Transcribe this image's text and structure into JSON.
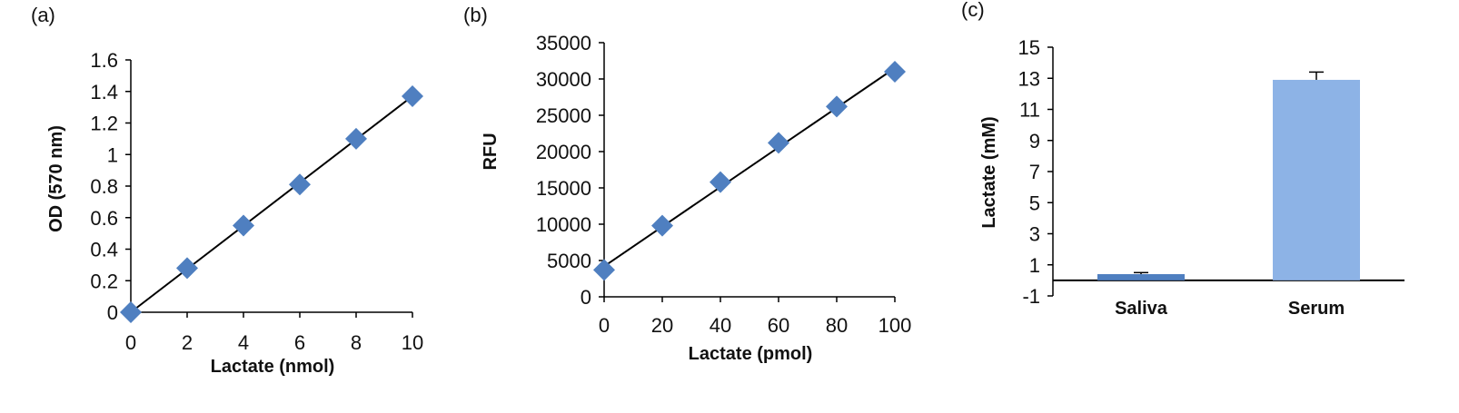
{
  "chart_data": [
    {
      "panel_label": "(a)",
      "type": "scatter",
      "xlabel": "Lactate (nmol)",
      "ylabel": "OD (570 nm)",
      "xlim": [
        0,
        10
      ],
      "ylim": [
        0,
        1.6
      ],
      "xticks": [
        "0",
        "2",
        "4",
        "6",
        "8",
        "10"
      ],
      "yticks": [
        "0",
        "0.2",
        "0.4",
        "0.6",
        "0.8",
        "1",
        "1.2",
        "1.4",
        "1.6"
      ],
      "x": [
        0,
        2,
        4,
        6,
        8,
        10
      ],
      "y": [
        0.0,
        0.28,
        0.55,
        0.81,
        1.1,
        1.37
      ],
      "trendline": {
        "type": "linear",
        "x": [
          0,
          10
        ],
        "y": [
          0.0,
          1.37
        ]
      },
      "marker": "diamond",
      "marker_color": "#4f7fc0",
      "grid": false
    },
    {
      "panel_label": "(b)",
      "type": "scatter",
      "xlabel": "Lactate (pmol)",
      "ylabel": "RFU",
      "xlim": [
        0,
        100
      ],
      "ylim": [
        0,
        35000
      ],
      "xticks": [
        "0",
        "20",
        "40",
        "60",
        "80",
        "100"
      ],
      "yticks": [
        "0",
        "5000",
        "10000",
        "15000",
        "20000",
        "25000",
        "30000",
        "35000"
      ],
      "x": [
        0,
        20,
        40,
        60,
        80,
        100
      ],
      "y": [
        3700,
        9800,
        15800,
        21200,
        26200,
        31000
      ],
      "trendline": {
        "type": "linear",
        "x": [
          0,
          100
        ],
        "y": [
          4200,
          31500
        ]
      },
      "marker": "diamond",
      "marker_color": "#4f7fc0",
      "grid": false
    },
    {
      "panel_label": "(c)",
      "type": "bar",
      "ylabel": "Lactate (mM)",
      "categories": [
        "Saliva",
        "Serum"
      ],
      "values": [
        0.4,
        12.9
      ],
      "errors": [
        0.1,
        0.5
      ],
      "ylim": [
        -1,
        15
      ],
      "yticks": [
        "-1",
        "1",
        "3",
        "5",
        "7",
        "9",
        "11",
        "13",
        "15"
      ],
      "bar_colors": [
        "#4f7fc0",
        "#8db3e6"
      ],
      "grid": false
    }
  ]
}
